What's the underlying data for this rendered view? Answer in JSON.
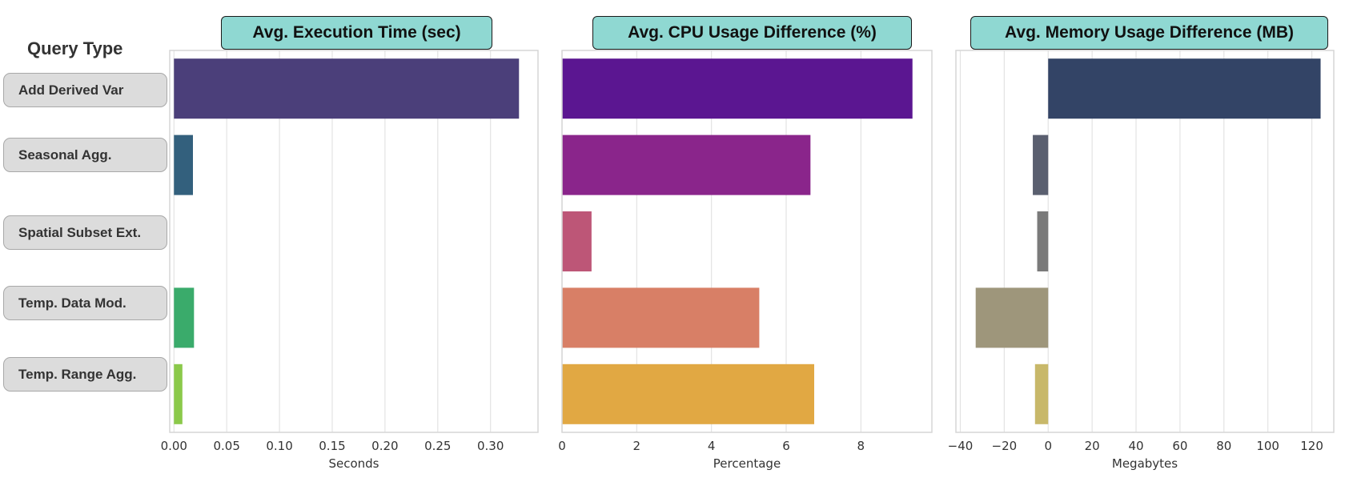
{
  "legend_title": "Query Type",
  "categories": [
    "Add Derived Var",
    "Seasonal Agg.",
    "Spatial Subset Ext.",
    "Temp. Data Mod.",
    "Temp. Range Agg."
  ],
  "chart_data": [
    {
      "type": "bar",
      "orientation": "horizontal",
      "title": "Avg. Execution Time (sec)",
      "xlabel": "Seconds",
      "categories": [
        "Add Derived Var",
        "Seasonal Agg.",
        "Spatial Subset Ext.",
        "Temp. Data Mod.",
        "Temp. Range Agg."
      ],
      "values": [
        0.327,
        0.018,
        0.0,
        0.019,
        0.008
      ],
      "colors": [
        "#4b3f7a",
        "#33607d",
        "#2e8f82",
        "#3aab6b",
        "#8bc94a"
      ],
      "xlim": [
        -0.004,
        0.345
      ],
      "xticks": [
        0.0,
        0.05,
        0.1,
        0.15,
        0.2,
        0.25,
        0.3
      ],
      "xtick_labels": [
        "0.00",
        "0.05",
        "0.10",
        "0.15",
        "0.20",
        "0.25",
        "0.30"
      ],
      "grid": true
    },
    {
      "type": "bar",
      "orientation": "horizontal",
      "title": "Avg. CPU Usage Difference (%)",
      "xlabel": "Percentage",
      "categories": [
        "Add Derived Var",
        "Seasonal Agg.",
        "Spatial Subset Ext.",
        "Temp. Data Mod.",
        "Temp. Range Agg."
      ],
      "values": [
        9.38,
        6.65,
        0.79,
        5.28,
        6.75
      ],
      "colors": [
        "#5b1691",
        "#8a258b",
        "#bd5677",
        "#d87f66",
        "#e1a843"
      ],
      "xlim": [
        0,
        9.9
      ],
      "xticks": [
        0,
        2,
        4,
        6,
        8
      ],
      "xtick_labels": [
        "0",
        "2",
        "4",
        "6",
        "8"
      ],
      "grid": true
    },
    {
      "type": "bar",
      "orientation": "horizontal",
      "title": "Avg. Memory Usage Difference (MB)",
      "xlabel": "Megabytes",
      "categories": [
        "Add Derived Var",
        "Seasonal Agg.",
        "Spatial Subset Ext.",
        "Temp. Data Mod.",
        "Temp. Range Agg."
      ],
      "values": [
        124,
        -7,
        -5,
        -33,
        -6
      ],
      "colors": [
        "#334466",
        "#5a5f6f",
        "#7a7a7a",
        "#9e967b",
        "#c8b86a"
      ],
      "xlim": [
        -42,
        130
      ],
      "xticks": [
        -40,
        -20,
        0,
        20,
        40,
        60,
        80,
        100,
        120
      ],
      "xtick_labels": [
        "−40",
        "−20",
        "0",
        "20",
        "40",
        "60",
        "80",
        "100",
        "120"
      ],
      "grid": true
    }
  ]
}
